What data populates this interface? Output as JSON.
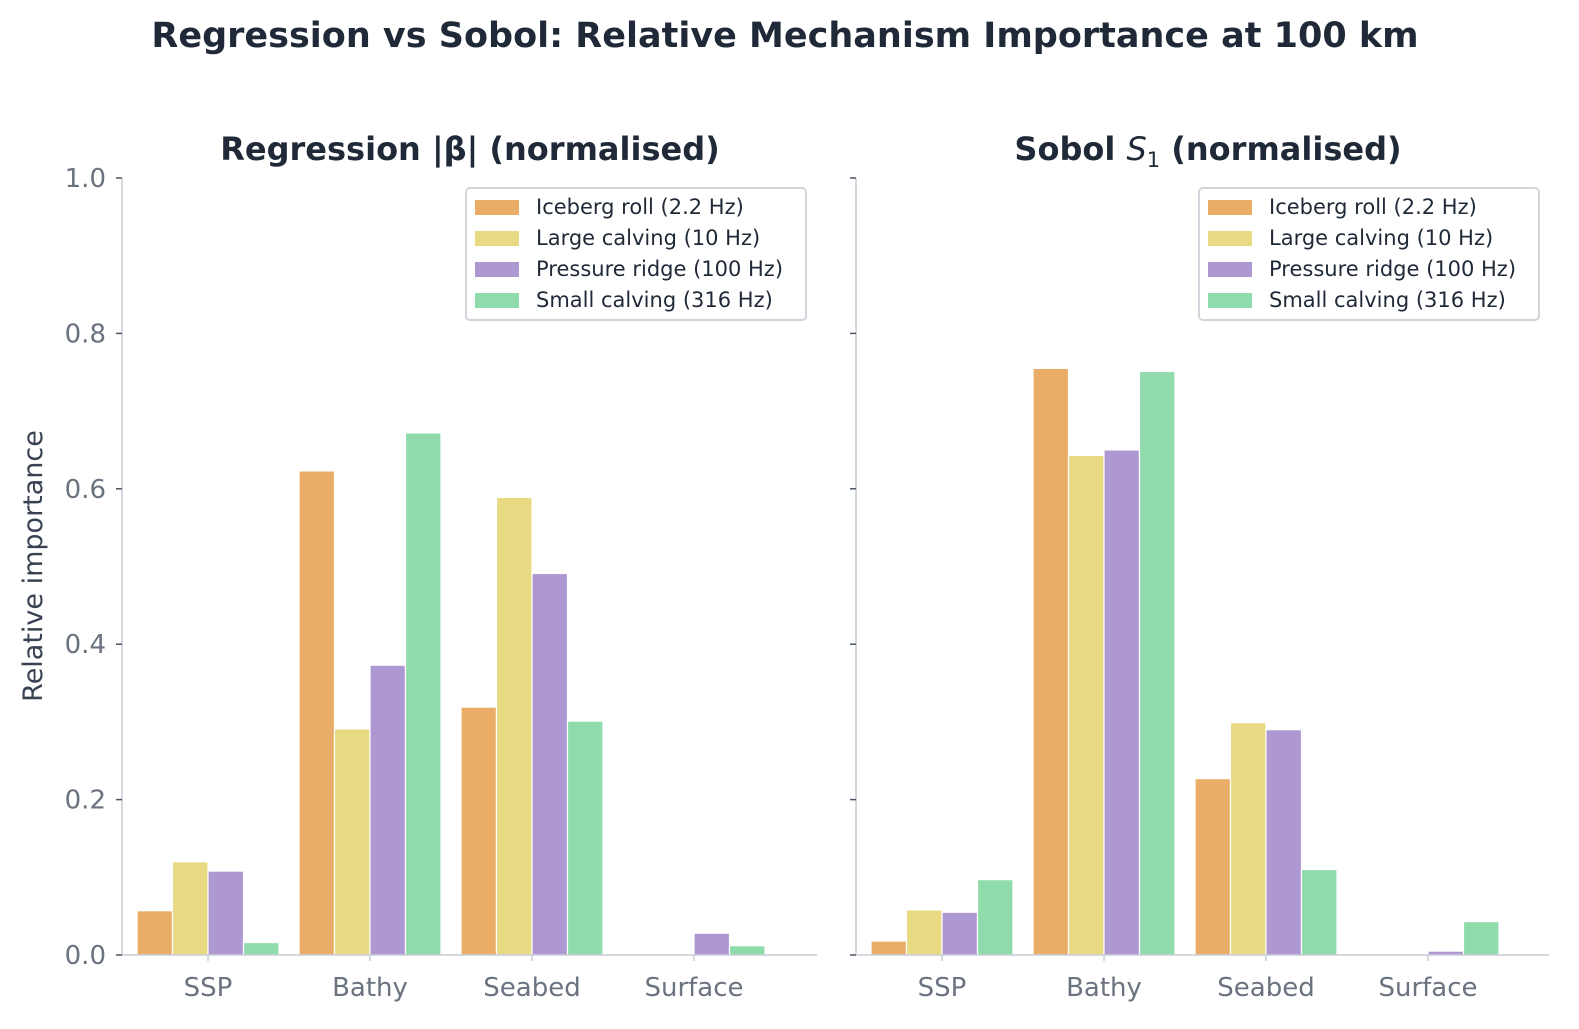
{
  "figure": {
    "title": "Regression vs Sobol: Relative Mechanism Importance at 100 km"
  },
  "colors": {
    "series": [
      "#e9ad67",
      "#e8d983",
      "#ad98d2",
      "#90dbab"
    ],
    "text": "#1f2937",
    "tick": "#6b7280",
    "axis": "#c9ccd6"
  },
  "chart_data": [
    {
      "type": "bar",
      "title": "Regression |β| (normalised)",
      "ylabel": "Relative importance",
      "ylim": [
        0,
        1.0
      ],
      "yticks": [
        "0.0",
        "0.2",
        "0.4",
        "0.6",
        "0.8",
        "1.0"
      ],
      "categories": [
        "SSP",
        "Bathy",
        "Seabed",
        "Surface"
      ],
      "legend_position": "top-right",
      "grid": false,
      "series": [
        {
          "name": "Iceberg roll (2.2 Hz)",
          "values": [
            0.057,
            0.623,
            0.319,
            0.0
          ]
        },
        {
          "name": "Large calving (10 Hz)",
          "values": [
            0.12,
            0.291,
            0.589,
            0.0
          ]
        },
        {
          "name": "Pressure ridge (100 Hz)",
          "values": [
            0.108,
            0.373,
            0.491,
            0.028
          ]
        },
        {
          "name": "Small calving (316 Hz)",
          "values": [
            0.016,
            0.672,
            0.301,
            0.012
          ]
        }
      ]
    },
    {
      "type": "bar",
      "title_prefix": "Sobol ",
      "title_symbol": "S",
      "title_subscript": "1",
      "title_suffix": " (normalised)",
      "ylim": [
        0,
        1.0
      ],
      "categories": [
        "SSP",
        "Bathy",
        "Seabed",
        "Surface"
      ],
      "legend_position": "top-right",
      "grid": false,
      "series": [
        {
          "name": "Iceberg roll (2.2 Hz)",
          "values": [
            0.018,
            0.755,
            0.227,
            0.0
          ]
        },
        {
          "name": "Large calving (10 Hz)",
          "values": [
            0.058,
            0.643,
            0.299,
            0.0
          ]
        },
        {
          "name": "Pressure ridge (100 Hz)",
          "values": [
            0.055,
            0.65,
            0.29,
            0.005
          ]
        },
        {
          "name": "Small calving (316 Hz)",
          "values": [
            0.097,
            0.751,
            0.11,
            0.043
          ]
        }
      ]
    }
  ]
}
